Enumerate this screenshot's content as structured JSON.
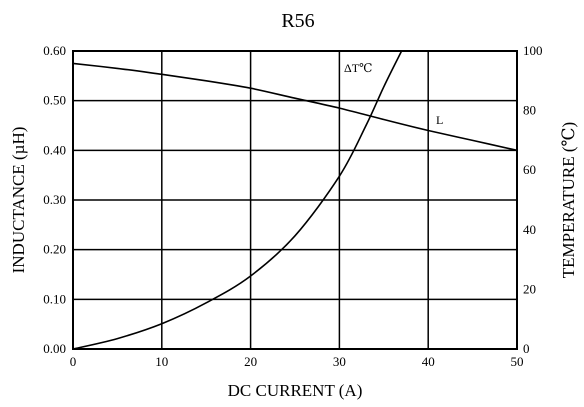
{
  "chart_data": {
    "type": "line",
    "title": "R56",
    "xlabel": "DC CURRENT (A)",
    "ylabel": "INDUCTANCE (µH)",
    "y2label": "TEMPERATURE (℃)",
    "xlim": [
      0,
      50
    ],
    "ylim": [
      0,
      0.6
    ],
    "y2lim": [
      0,
      100
    ],
    "x_ticks": [
      "0",
      "10",
      "20",
      "30",
      "40",
      "50"
    ],
    "y_ticks": [
      "0.00",
      "0.10",
      "0.20",
      "0.30",
      "0.40",
      "0.50",
      "0.60"
    ],
    "y2_ticks": [
      "0",
      "20",
      "40",
      "60",
      "80",
      "100"
    ],
    "grid": true,
    "series": [
      {
        "name": "L",
        "axis": "left",
        "x": [
          0,
          5,
          10,
          15,
          20,
          25,
          30,
          35,
          40,
          45,
          50
        ],
        "y": [
          0.575,
          0.565,
          0.553,
          0.54,
          0.525,
          0.505,
          0.485,
          0.462,
          0.44,
          0.42,
          0.4
        ]
      },
      {
        "name": "ΔT℃",
        "axis": "right",
        "x": [
          0,
          5,
          10,
          15,
          20,
          25,
          30,
          33,
          35,
          37
        ],
        "y": [
          0,
          3.5,
          8.5,
          15.5,
          24.5,
          38,
          58,
          75,
          88,
          100
        ]
      }
    ]
  }
}
